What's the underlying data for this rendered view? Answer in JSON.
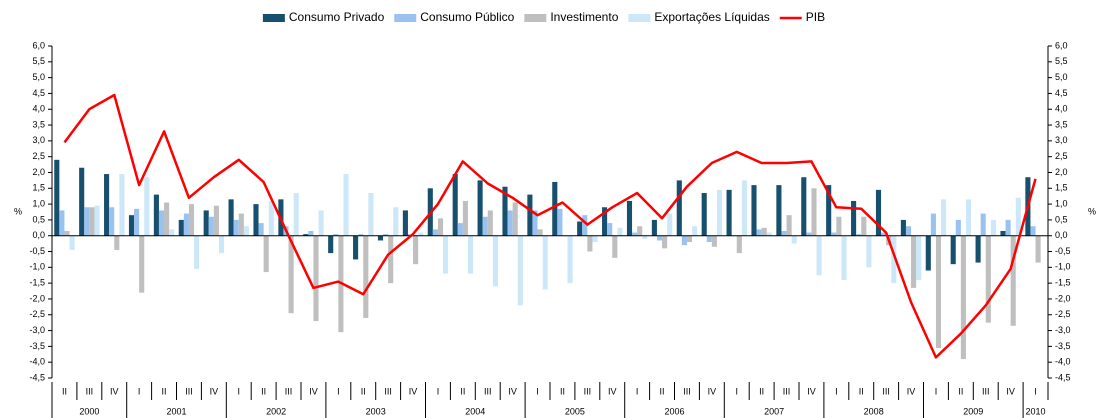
{
  "chart_data": {
    "type": "bar",
    "categories": [
      "II",
      "III",
      "IV",
      "I",
      "II",
      "III",
      "IV",
      "I",
      "II",
      "III",
      "IV",
      "I",
      "II",
      "III",
      "IV",
      "I",
      "II",
      "III",
      "IV",
      "I",
      "II",
      "III",
      "IV",
      "I",
      "II",
      "III",
      "IV",
      "I",
      "II",
      "III",
      "IV",
      "I",
      "II",
      "III",
      "IV",
      "I",
      "II",
      "III",
      "IV",
      "I"
    ],
    "years": [
      "2000",
      "2001",
      "2002",
      "2003",
      "2004",
      "2005",
      "2006",
      "2007",
      "2008",
      "2009",
      "2010"
    ],
    "series": [
      {
        "name": "Consumo Privado",
        "type": "bar",
        "color": "#17506e",
        "values": [
          2.4,
          2.15,
          1.95,
          0.65,
          1.3,
          0.5,
          0.8,
          1.15,
          1.0,
          1.15,
          0.05,
          -0.55,
          -0.75,
          -0.15,
          0.8,
          1.5,
          1.95,
          1.75,
          1.55,
          1.3,
          1.7,
          0.45,
          0.9,
          1.1,
          0.5,
          1.75,
          1.35,
          1.45,
          1.6,
          1.6,
          1.85,
          1.6,
          1.1,
          1.45,
          0.5,
          -1.1,
          -0.9,
          -0.85,
          0.15,
          1.85
        ]
      },
      {
        "name": "Consumo Público",
        "type": "bar",
        "color": "#99c2f0",
        "values": [
          0.8,
          0.9,
          0.9,
          0.85,
          0.8,
          0.7,
          0.6,
          0.5,
          0.4,
          0.3,
          0.15,
          0.05,
          0.05,
          0.05,
          0.05,
          0.2,
          0.4,
          0.6,
          0.8,
          0.8,
          0.85,
          0.65,
          0.4,
          0.1,
          -0.15,
          -0.3,
          -0.2,
          0.0,
          0.2,
          0.15,
          0.1,
          0.1,
          0.05,
          0.1,
          0.3,
          0.7,
          0.5,
          0.7,
          0.5,
          0.3
        ]
      },
      {
        "name": "Investimento",
        "type": "bar",
        "color": "#bfbfbf",
        "values": [
          0.15,
          0.9,
          -0.45,
          -1.8,
          1.05,
          1.0,
          0.95,
          0.7,
          -1.15,
          -2.45,
          -2.7,
          -3.05,
          -2.6,
          -1.5,
          -0.9,
          0.55,
          1.1,
          0.8,
          1.05,
          0.2,
          0.0,
          -0.5,
          -0.7,
          0.3,
          -0.4,
          -0.2,
          -0.35,
          -0.55,
          0.25,
          0.65,
          1.5,
          0.6,
          0.6,
          -0.3,
          -1.65,
          -3.55,
          -3.9,
          -2.75,
          -2.85,
          -0.85
        ]
      },
      {
        "name": "Exportações Líquidas",
        "type": "bar",
        "color": "#cce8f8",
        "values": [
          -0.45,
          0.95,
          1.95,
          1.85,
          0.2,
          -1.05,
          -0.55,
          0.3,
          1.1,
          1.35,
          0.8,
          1.95,
          1.35,
          0.9,
          0.1,
          -1.2,
          -1.2,
          -1.6,
          -2.2,
          -1.7,
          -1.5,
          -0.2,
          0.25,
          -0.1,
          0.7,
          0.3,
          1.45,
          1.75,
          0.1,
          -0.25,
          -1.25,
          -1.4,
          -1.0,
          -1.5,
          -1.4,
          1.15,
          1.15,
          0.5,
          1.2,
          0.0
        ]
      },
      {
        "name": "PIB",
        "type": "line",
        "color": "#ff0000",
        "values": [
          2.95,
          4.0,
          4.45,
          1.6,
          3.3,
          1.2,
          1.85,
          2.4,
          1.7,
          0.0,
          -1.65,
          -1.45,
          -1.85,
          -0.6,
          0.05,
          1.0,
          2.35,
          1.65,
          1.2,
          0.65,
          1.05,
          0.35,
          0.9,
          1.35,
          0.55,
          1.55,
          2.3,
          2.65,
          2.3,
          2.3,
          2.35,
          0.9,
          0.85,
          0.1,
          -2.1,
          -3.85,
          -3.1,
          -2.2,
          -1.05,
          1.8
        ]
      }
    ],
    "ylabel": "%",
    "y2label": "%",
    "ylim": [
      -4.5,
      6.0
    ],
    "yticks": [
      {
        "value": -4.5,
        "label": "-4,5"
      },
      {
        "value": -4.0,
        "label": "-4,0"
      },
      {
        "value": -3.5,
        "label": "-3,5"
      },
      {
        "value": -3.0,
        "label": "-3,0"
      },
      {
        "value": -2.5,
        "label": "-2,5"
      },
      {
        "value": -2.0,
        "label": "-2,0"
      },
      {
        "value": -1.5,
        "label": "-1,5"
      },
      {
        "value": -1.0,
        "label": "-1,0"
      },
      {
        "value": -0.5,
        "label": "-0,5"
      },
      {
        "value": 0,
        "label": "0,0"
      },
      {
        "value": 0.5,
        "label": "0,5"
      },
      {
        "value": 1.0,
        "label": "1,0"
      },
      {
        "value": 1.5,
        "label": "1,5"
      },
      {
        "value": 2.0,
        "label": "2,0"
      },
      {
        "value": 2.5,
        "label": "2,5"
      },
      {
        "value": 3.0,
        "label": "3,0"
      },
      {
        "value": 3.5,
        "label": "3,5"
      },
      {
        "value": 4.0,
        "label": "4,0"
      },
      {
        "value": 4.5,
        "label": "4,5"
      },
      {
        "value": 5.0,
        "label": "5,0"
      },
      {
        "value": 5.5,
        "label": "5,5"
      },
      {
        "value": 6.0,
        "label": "6,0"
      }
    ],
    "y2lim": [
      -4.5,
      6.0
    ],
    "y2ticks": [
      {
        "value": -4.5,
        "label": "-4,5"
      },
      {
        "value": -4.0,
        "label": "-4,0"
      },
      {
        "value": -3.5,
        "label": "-3,5"
      },
      {
        "value": -3.0,
        "label": "-3,0"
      },
      {
        "value": -2.5,
        "label": "-2,5"
      },
      {
        "value": -2.0,
        "label": "-2,0"
      },
      {
        "value": -1.5,
        "label": "-1,5"
      },
      {
        "value": -1.0,
        "label": "-1,0"
      },
      {
        "value": -0.5,
        "label": "-0,5"
      },
      {
        "value": 0,
        "label": "0,0"
      },
      {
        "value": 0.5,
        "label": "0,5"
      },
      {
        "value": 1.0,
        "label": "1,0"
      },
      {
        "value": 1.5,
        "label": "1,5"
      },
      {
        "value": 2.0,
        "label": "2,0"
      },
      {
        "value": 2.5,
        "label": "2,5"
      },
      {
        "value": 3.0,
        "label": "3,0"
      },
      {
        "value": 3.5,
        "label": "3,5"
      },
      {
        "value": 4.0,
        "label": "4,0"
      },
      {
        "value": 4.5,
        "label": "4,5"
      },
      {
        "value": 5.0,
        "label": "5,0"
      },
      {
        "value": 5.5,
        "label": "5,5"
      },
      {
        "value": 6.0,
        "label": "6,0"
      }
    ],
    "legend": "top"
  }
}
